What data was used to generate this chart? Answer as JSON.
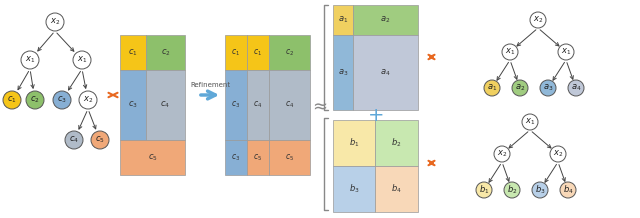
{
  "bg_color": "#ffffff",
  "colors": {
    "yellow": "#f5c518",
    "green": "#8dc06b",
    "blue": "#87afd4",
    "gray": "#b0bbc8",
    "peach": "#f0a878",
    "light_yellow": "#f8e8b0",
    "light_green": "#c8e8b0",
    "light_blue": "#a8c8e0",
    "light_gray": "#c8ccda",
    "a_yellow": "#f0d060",
    "a_green": "#a0cc80",
    "a_blue": "#90b8d8",
    "a_gray": "#c0c8d8",
    "b_yellow": "#f8e8a8",
    "b_green": "#c8e8b0",
    "b_blue": "#b8d0e8",
    "b_peach": "#f8d8b8"
  },
  "arrow_orange": "#e86820",
  "arrow_blue": "#60a8d8",
  "node_ec": "#555555",
  "line_color": "#444444"
}
